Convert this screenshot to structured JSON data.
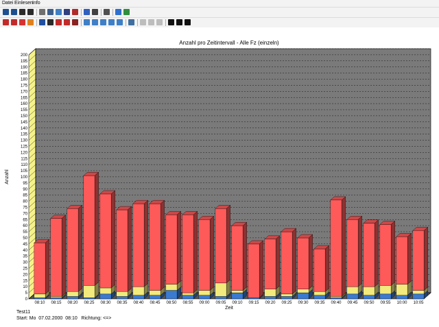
{
  "menu": {
    "items": [
      "Datei",
      "Einlesen",
      "Info"
    ]
  },
  "toolbar1": [
    {
      "icon": "open-folder-icon",
      "color": "#1c4f8f"
    },
    {
      "icon": "save-icon",
      "color": "#1c4f8f"
    },
    {
      "icon": "save-as-icon",
      "color": "#2a2a2a"
    },
    {
      "icon": "export-icon",
      "color": "#2a2a2a"
    },
    {
      "icon": "filter-icon",
      "color": "#707070"
    },
    {
      "icon": "windows-icon",
      "color": "#3d5f8c"
    },
    {
      "icon": "folder-icon",
      "color": "#3f7fc6"
    },
    {
      "icon": "bar-chart-icon",
      "color": "#2f3f7f"
    },
    {
      "icon": "book-icon",
      "color": "#b02a2a"
    },
    {
      "icon": "clock-icon",
      "color": "#2f5fbf"
    },
    {
      "icon": "cancel-icon",
      "color": "#404040"
    },
    {
      "icon": "print-icon",
      "color": "#505050"
    },
    {
      "icon": "info-icon",
      "color": "#2f6fcf"
    },
    {
      "icon": "globe-icon",
      "color": "#2f8f3f"
    }
  ],
  "toolbar2": [
    {
      "icon": "car-stack-icon",
      "color": "#c22a2a"
    },
    {
      "icon": "car-icon",
      "color": "#c22a2a"
    },
    {
      "icon": "car-red-icon",
      "color": "#d63232"
    },
    {
      "icon": "car-orange-icon",
      "color": "#e0801c"
    },
    {
      "icon": "bus-icon",
      "color": "#1f4f9f"
    },
    {
      "icon": "truck-icon",
      "color": "#2a2a2a"
    },
    {
      "icon": "van-icon",
      "color": "#c22a2a"
    },
    {
      "icon": "trailer-icon",
      "color": "#c22a2a"
    },
    {
      "icon": "tractor-icon",
      "color": "#8a2020"
    },
    {
      "icon": "lane-blue-icon",
      "color": "#3f7fc6"
    },
    {
      "icon": "lane-blue2-icon",
      "color": "#3f7fc6"
    },
    {
      "icon": "lane-blue3-icon",
      "color": "#3f7fc6"
    },
    {
      "icon": "lane-blue4-icon",
      "color": "#3f7fc6"
    },
    {
      "icon": "lane-blue5-icon",
      "color": "#3f7fc6"
    },
    {
      "icon": "swap-icon",
      "color": "#3f6f9f"
    },
    {
      "icon": "zoom-in-disabled-icon",
      "color": "#bdbdbd"
    },
    {
      "icon": "zoom-out-disabled-icon",
      "color": "#bdbdbd"
    },
    {
      "icon": "step-back-disabled-icon",
      "color": "#bdbdbd"
    },
    {
      "icon": "play-icon",
      "color": "#111111"
    },
    {
      "icon": "step-forward-icon",
      "color": "#111111"
    },
    {
      "icon": "fast-forward-icon",
      "color": "#111111"
    }
  ],
  "chart_data": {
    "type": "bar",
    "stacked": true,
    "title": "Anzahl pro Zeitintervall - Alle Fz (einzeln)",
    "xlabel": "Zeit",
    "ylabel": "Anzahl",
    "ylim": [
      0,
      200
    ],
    "ytick_step": 5,
    "grid": true,
    "categories": [
      "08:10",
      "08:15",
      "08:20",
      "08:25",
      "08:30",
      "08:35",
      "08:40",
      "08:45",
      "08:50",
      "08:55",
      "09:00",
      "09:05",
      "09:10",
      "09:15",
      "09:20",
      "09:25",
      "09:30",
      "09:35",
      "09:40",
      "09:45",
      "09:50",
      "09:55",
      "10:00",
      "10:05"
    ],
    "series": [
      {
        "color": "#3a7ad0",
        "values": [
          1,
          1,
          2,
          1,
          4,
          2,
          3,
          3,
          7,
          3,
          3,
          2,
          5,
          1,
          2,
          2,
          5,
          3,
          1,
          4,
          3,
          4,
          3,
          4
        ]
      },
      {
        "color": "#f2ea7c",
        "values": [
          3,
          1,
          4,
          10,
          5,
          4,
          7,
          4,
          5,
          2,
          4,
          11,
          2,
          0,
          6,
          2,
          3,
          3,
          1,
          6,
          7,
          7,
          9,
          3
        ]
      },
      {
        "color": "#ff5a5a",
        "values": [
          42,
          64,
          68,
          90,
          77,
          67,
          68,
          71,
          57,
          64,
          58,
          61,
          53,
          44,
          41,
          51,
          42,
          35,
          79,
          55,
          52,
          50,
          39,
          49
        ]
      }
    ],
    "colors": {
      "plot_bg": "#7a7a7a",
      "floor": "#555555",
      "wall": "#f6f28a"
    }
  },
  "footer": {
    "line1": "Test11",
    "line2": "Start: Mo  07.02.2000  08:10   Richtung: <=>"
  }
}
